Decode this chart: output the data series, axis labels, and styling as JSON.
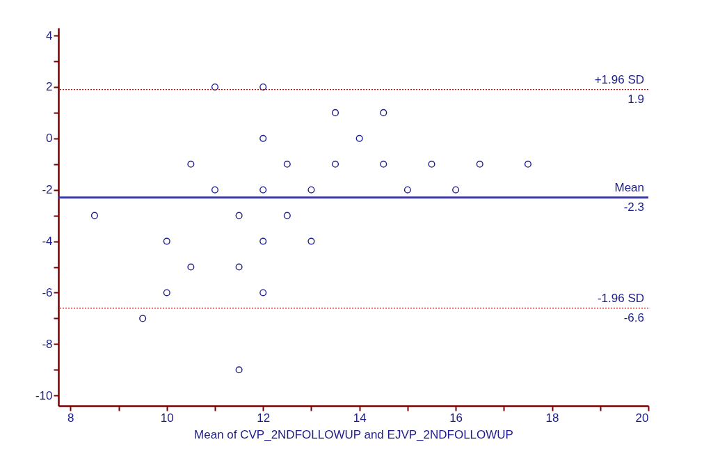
{
  "chart_data": {
    "type": "scatter",
    "xlabel": "Mean of CVP_2NDFOLLOWUP and EJVP_2NDFOLLOWUP",
    "x": [
      8.5,
      9.5,
      10,
      10,
      10.5,
      10.5,
      11,
      11,
      11.5,
      11.5,
      11.5,
      12,
      12,
      12,
      12,
      12,
      12.5,
      12.5,
      13,
      13,
      13.5,
      13.5,
      14,
      14.5,
      14.5,
      15,
      15.5,
      16,
      16.5,
      17.5
    ],
    "series": [
      {
        "color": "#1c1c8c",
        "values": [
          -3,
          -7,
          -4,
          -6,
          -1,
          -5,
          2,
          -2,
          -3,
          -5,
          -9,
          2,
          0,
          -2,
          -4,
          -6,
          -1,
          -3,
          -2,
          -4,
          1,
          -1,
          0,
          1,
          -1,
          -2,
          -1,
          -2,
          -1,
          -1
        ]
      }
    ],
    "marker": "circle",
    "grid": false,
    "annotations": [
      {
        "text": "1.9",
        "y": 1.9
      },
      {
        "text": "-2.3",
        "y": -2.3
      },
      {
        "text": "-6.6",
        "y": -6.6
      }
    ],
    "xlim": [
      7.75,
      20
    ],
    "ylim": [
      -10.4,
      4.3
    ],
    "xticks": [
      8,
      {
        "value": 9,
        "label": null
      },
      10,
      {
        "value": 11,
        "label": null
      },
      12,
      {
        "value": 13,
        "label": null
      },
      14,
      {
        "value": 15,
        "label": null
      },
      16,
      {
        "value": 17,
        "label": null
      },
      18,
      {
        "value": 19,
        "label": null
      },
      20
    ],
    "yticks": [
      -10,
      {
        "value": -9,
        "label": null
      },
      -8,
      {
        "value": -7,
        "label": null
      },
      -6,
      {
        "value": -5,
        "label": null
      },
      -4,
      {
        "value": -3,
        "label": null
      },
      -2,
      {
        "value": -1,
        "label": null
      },
      0,
      {
        "value": 1,
        "label": null
      },
      2,
      {
        "value": 3,
        "label": null
      },
      4
    ],
    "ref_lines": [
      {
        "axis": "y",
        "value": 1.9,
        "label": "+1.96 SD",
        "color": "#8b1a1a",
        "line_style": "dotted"
      },
      {
        "axis": "y",
        "value": -2.3,
        "label": "Mean",
        "color": "#3a3aa0",
        "line_style": "solid"
      },
      {
        "axis": "y",
        "value": -6.6,
        "label": "-1.96 SD",
        "color": "#8b1a1a",
        "line_style": "dotted"
      }
    ]
  }
}
